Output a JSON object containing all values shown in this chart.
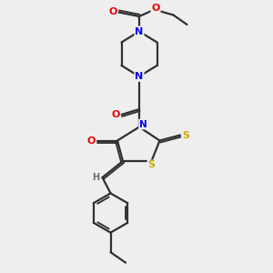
{
  "background_color": "#eeeeee",
  "atom_colors": {
    "C": "#303030",
    "N": "#0000ee",
    "O": "#ee0000",
    "S": "#ccaa00",
    "H": "#607070"
  },
  "bond_color": "#303030",
  "bond_width": 1.6,
  "dbo": 0.07,
  "figsize": [
    3.0,
    3.0
  ],
  "dpi": 100
}
